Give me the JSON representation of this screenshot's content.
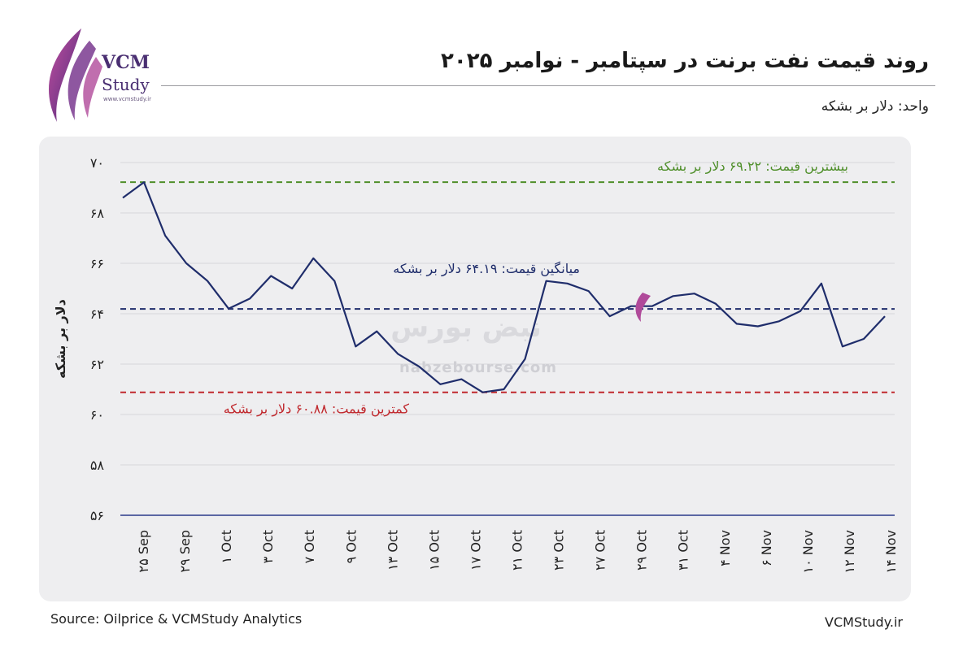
{
  "header": {
    "title": "روند قیمت نفت برنت در سپتامبر - نوامبر ۲۰۲۵",
    "unit": "واحد: دلار بر بشکه"
  },
  "logo": {
    "name": "VCM",
    "sub": "Study",
    "url": "www.vcmstudy.ir"
  },
  "watermark": {
    "brand": "نبض بورس",
    "url": "nabzebourse.com"
  },
  "footer": {
    "source": "Source: Oilprice & VCMStudy Analytics",
    "site": "VCMStudy.ir"
  },
  "colors": {
    "line": "#1f2d6b",
    "max": "#4f8f2a",
    "avg": "#1f2d6b",
    "min": "#c0282d",
    "axis": "#2a3a8a"
  },
  "chart_data": {
    "type": "line",
    "title": "روند قیمت نفت برنت در سپتامبر - نوامبر ۲۰۲۵",
    "ylabel": "دلار بر بشکه",
    "xlabel": "",
    "ylim": [
      56,
      70
    ],
    "yticks": [
      56,
      58,
      60,
      62,
      64,
      66,
      68,
      70
    ],
    "ytick_labels": [
      "۵۶",
      "۵۸",
      "۶۰",
      "۶۲",
      "۶۴",
      "۶۶",
      "۶۸",
      "۷۰"
    ],
    "x_tick_labels": [
      "۲۵ Sep",
      "۲۹ Sep",
      "۱ Oct",
      "۳ Oct",
      "۷ Oct",
      "۹ Oct",
      "۱۳ Oct",
      "۱۵ Oct",
      "۱۷ Oct",
      "۲۱ Oct",
      "۲۳ Oct",
      "۲۷ Oct",
      "۲۹ Oct",
      "۳۱ Oct",
      "۴ Nov",
      "۶ Nov",
      "۱۰ Nov",
      "۱۲ Nov",
      "۱۴ Nov"
    ],
    "values": [
      68.6,
      69.22,
      67.1,
      66.0,
      65.3,
      64.2,
      64.6,
      65.5,
      65.0,
      66.2,
      65.3,
      62.7,
      63.3,
      62.4,
      61.9,
      61.2,
      61.4,
      60.88,
      61.0,
      62.2,
      65.3,
      65.2,
      64.9,
      63.9,
      64.3,
      64.3,
      64.7,
      64.8,
      64.4,
      63.6,
      63.5,
      63.7,
      64.1,
      65.2,
      62.7,
      63.0,
      63.9
    ],
    "reference_lines": [
      {
        "name": "max",
        "value": 69.22,
        "label": "بیشترین قیمت: ۶۹.۲۲ دلار بر بشکه"
      },
      {
        "name": "avg",
        "value": 64.19,
        "label": "میانگین قیمت: ۶۴.۱۹ دلار بر بشکه"
      },
      {
        "name": "min",
        "value": 60.88,
        "label": "کمترین قیمت: ۶۰.۸۸ دلار بر بشکه"
      }
    ],
    "grid": true
  }
}
